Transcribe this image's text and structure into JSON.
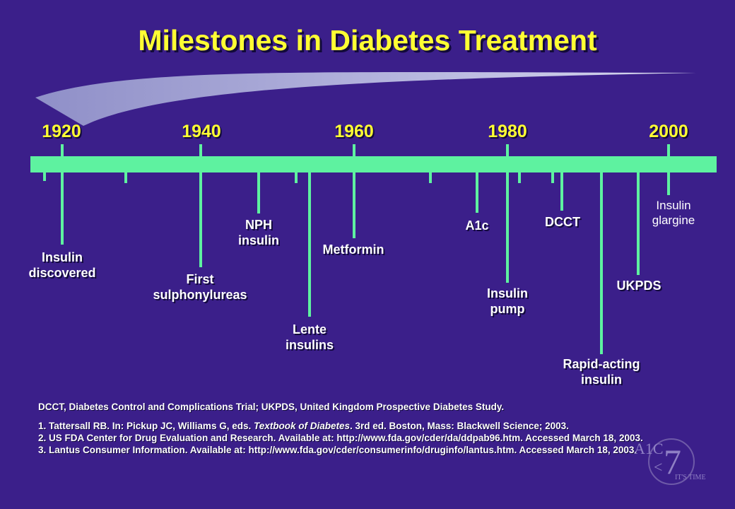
{
  "title": "Milestones in Diabetes Treatment",
  "years": [
    "1920",
    "1940",
    "1960",
    "1980",
    "2000"
  ],
  "events": [
    {
      "label": "Insulin discovered",
      "lines": [
        "Insulin",
        "discovered"
      ]
    },
    {
      "label": "First sulphonylureas",
      "lines": [
        "First",
        "sulphonylureas"
      ]
    },
    {
      "label": "NPH insulin",
      "lines": [
        "NPH",
        "insulin"
      ]
    },
    {
      "label": "Lente insulins",
      "lines": [
        "Lente",
        "insulins"
      ]
    },
    {
      "label": "Metformin",
      "lines": [
        "Metformin"
      ]
    },
    {
      "label": "A1c",
      "lines": [
        "A1c"
      ]
    },
    {
      "label": "Insulin pump",
      "lines": [
        "Insulin",
        "pump"
      ]
    },
    {
      "label": "DCCT",
      "lines": [
        "DCCT"
      ]
    },
    {
      "label": "Rapid-acting insulin",
      "lines": [
        "Rapid-acting",
        "insulin"
      ]
    },
    {
      "label": "UKPDS",
      "lines": [
        "UKPDS"
      ]
    },
    {
      "label": "Insulin glargine",
      "lines": [
        "Insulin",
        "glargine"
      ]
    }
  ],
  "abbreviations": "DCCT, Diabetes Control and Complications Trial; UKPDS, United Kingdom Prospective Diabetes Study.",
  "references": [
    {
      "pre": "1. Tattersall RB. In: Pickup JC, Williams G, eds. ",
      "italic": "Textbook of Diabetes",
      "post": ". 3rd ed. Boston, Mass: Blackwell Science; 2003."
    },
    {
      "pre": "2. US FDA Center for Drug Evaluation and Research. Available at: http://www.fda.gov/cder/da/ddpab96.htm. Accessed March 18, 2003.",
      "italic": "",
      "post": ""
    },
    {
      "pre": "3. Lantus Consumer Information. Available at: http://www.fda.gov/cder/consumerinfo/druginfo/lantus.htm. Accessed March 18, 2003.",
      "italic": "",
      "post": ""
    }
  ],
  "logo": {
    "a1c": "A1C",
    "seven": "7",
    "less": "<",
    "tagline": "IT'S TIME"
  },
  "colors": {
    "background": "#3b1f8a",
    "title": "#ffff33",
    "timeline": "#5ef2a0",
    "text": "#ffffff"
  }
}
